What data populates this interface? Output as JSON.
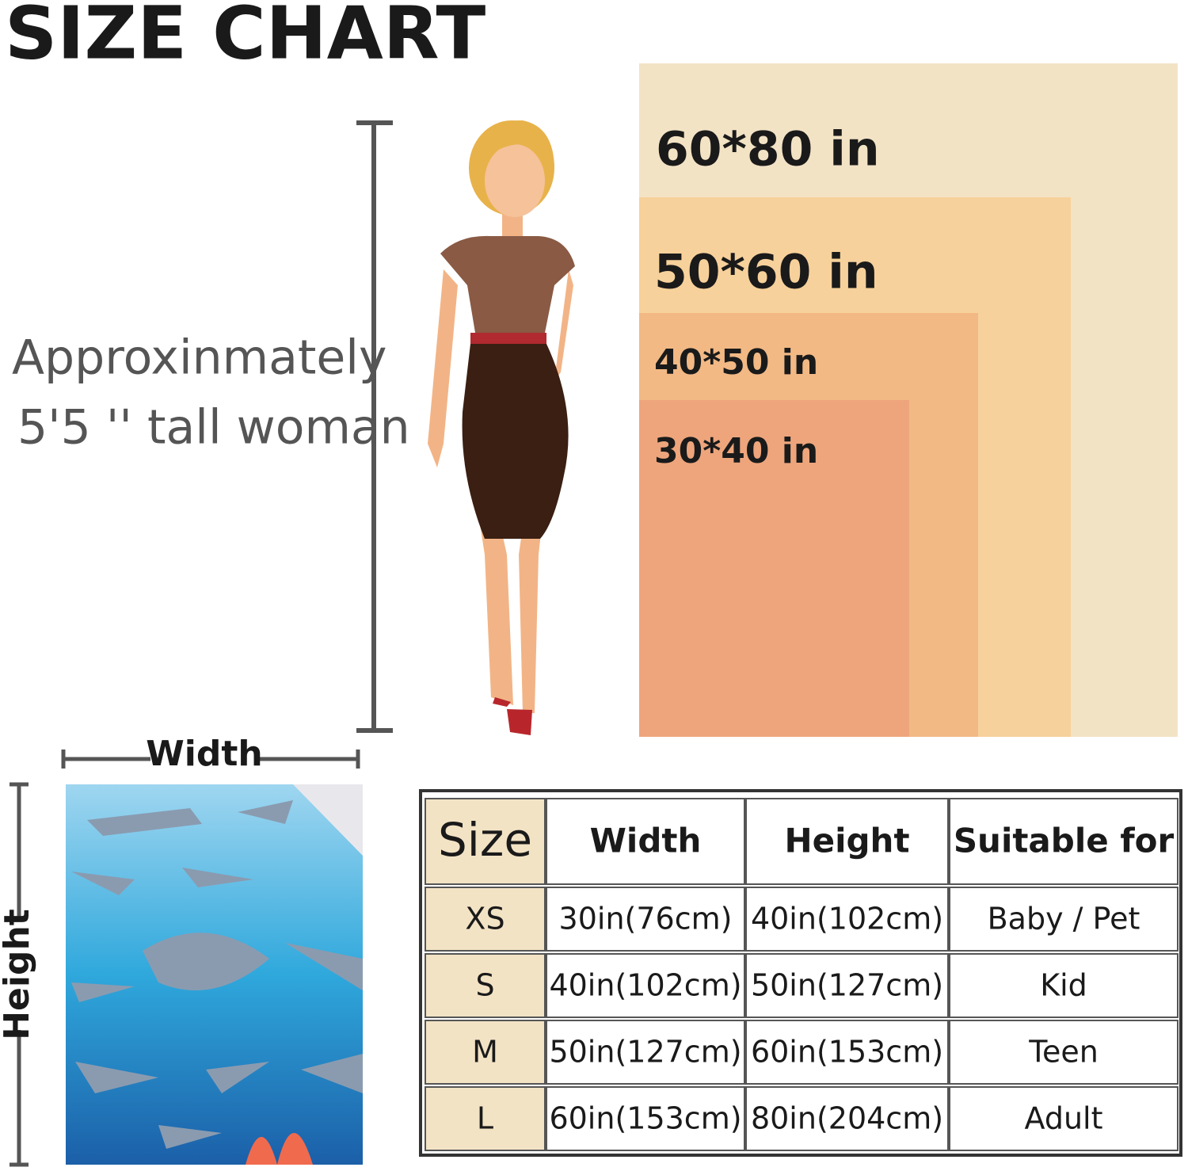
{
  "header": {
    "title": "SIZE CHART"
  },
  "note": {
    "lines": [
      "Approxinmately",
      "5'5 '' tall woman"
    ]
  },
  "size_boxes": [
    "60*80 in",
    "50*60 in",
    "40*50 in",
    "30*40 in"
  ],
  "blanket": {
    "width_label": "Width",
    "height_label": "Height"
  },
  "table": {
    "columns": [
      "Size",
      "Width",
      "Height",
      "Suitable for"
    ],
    "rows": [
      [
        "XS",
        "30in(76cm)",
        "40in(102cm)",
        "Baby / Pet"
      ],
      [
        "S",
        "40in(102cm)",
        "50in(127cm)",
        "Kid"
      ],
      [
        "M",
        "50in(127cm)",
        "60in(153cm)",
        "Teen"
      ],
      [
        "L",
        "60in(153cm)",
        "80in(204cm)",
        "Adult"
      ]
    ]
  }
}
